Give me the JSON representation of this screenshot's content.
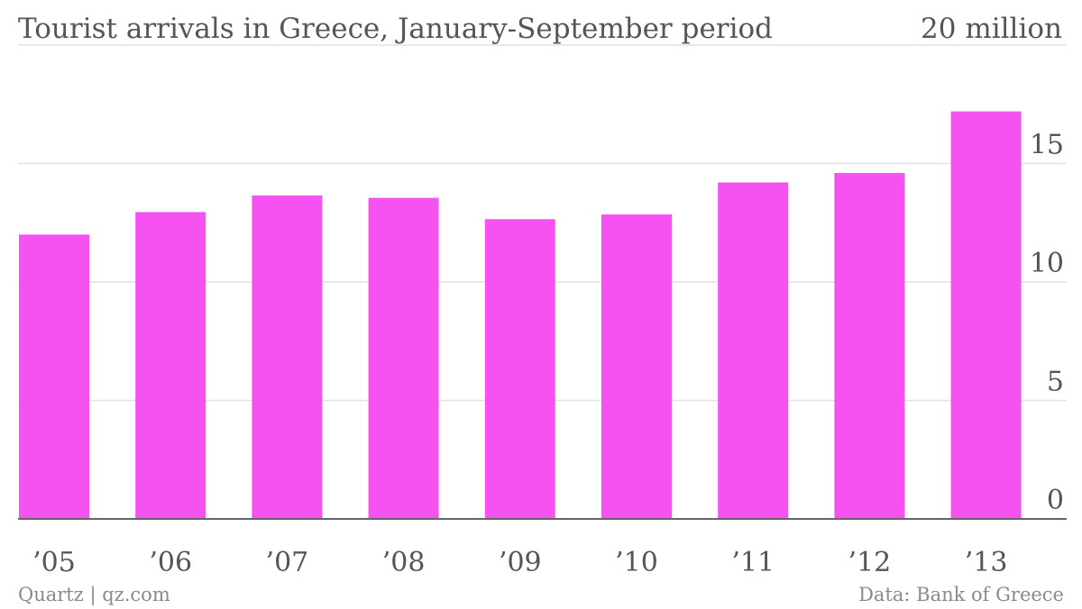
{
  "chart_data": {
    "type": "bar",
    "title": "Tourist arrivals in Greece, January-September period",
    "unit_label": "20 million",
    "categories": [
      "’05",
      "’06",
      "’07",
      "’08",
      "’09",
      "’10",
      "’11",
      "’12",
      "’13"
    ],
    "values": [
      12.0,
      12.95,
      13.65,
      13.55,
      12.65,
      12.85,
      14.2,
      14.6,
      17.2
    ],
    "ylim": [
      0,
      20
    ],
    "yticks": [
      "0",
      "5",
      "10",
      "15"
    ],
    "ytick_values": [
      0,
      5,
      10,
      15
    ],
    "grid": true,
    "bar_color": "#f652f2"
  },
  "footer": {
    "source_left": "Quartz | qz.com",
    "source_right": "Data: Bank of Greece"
  }
}
